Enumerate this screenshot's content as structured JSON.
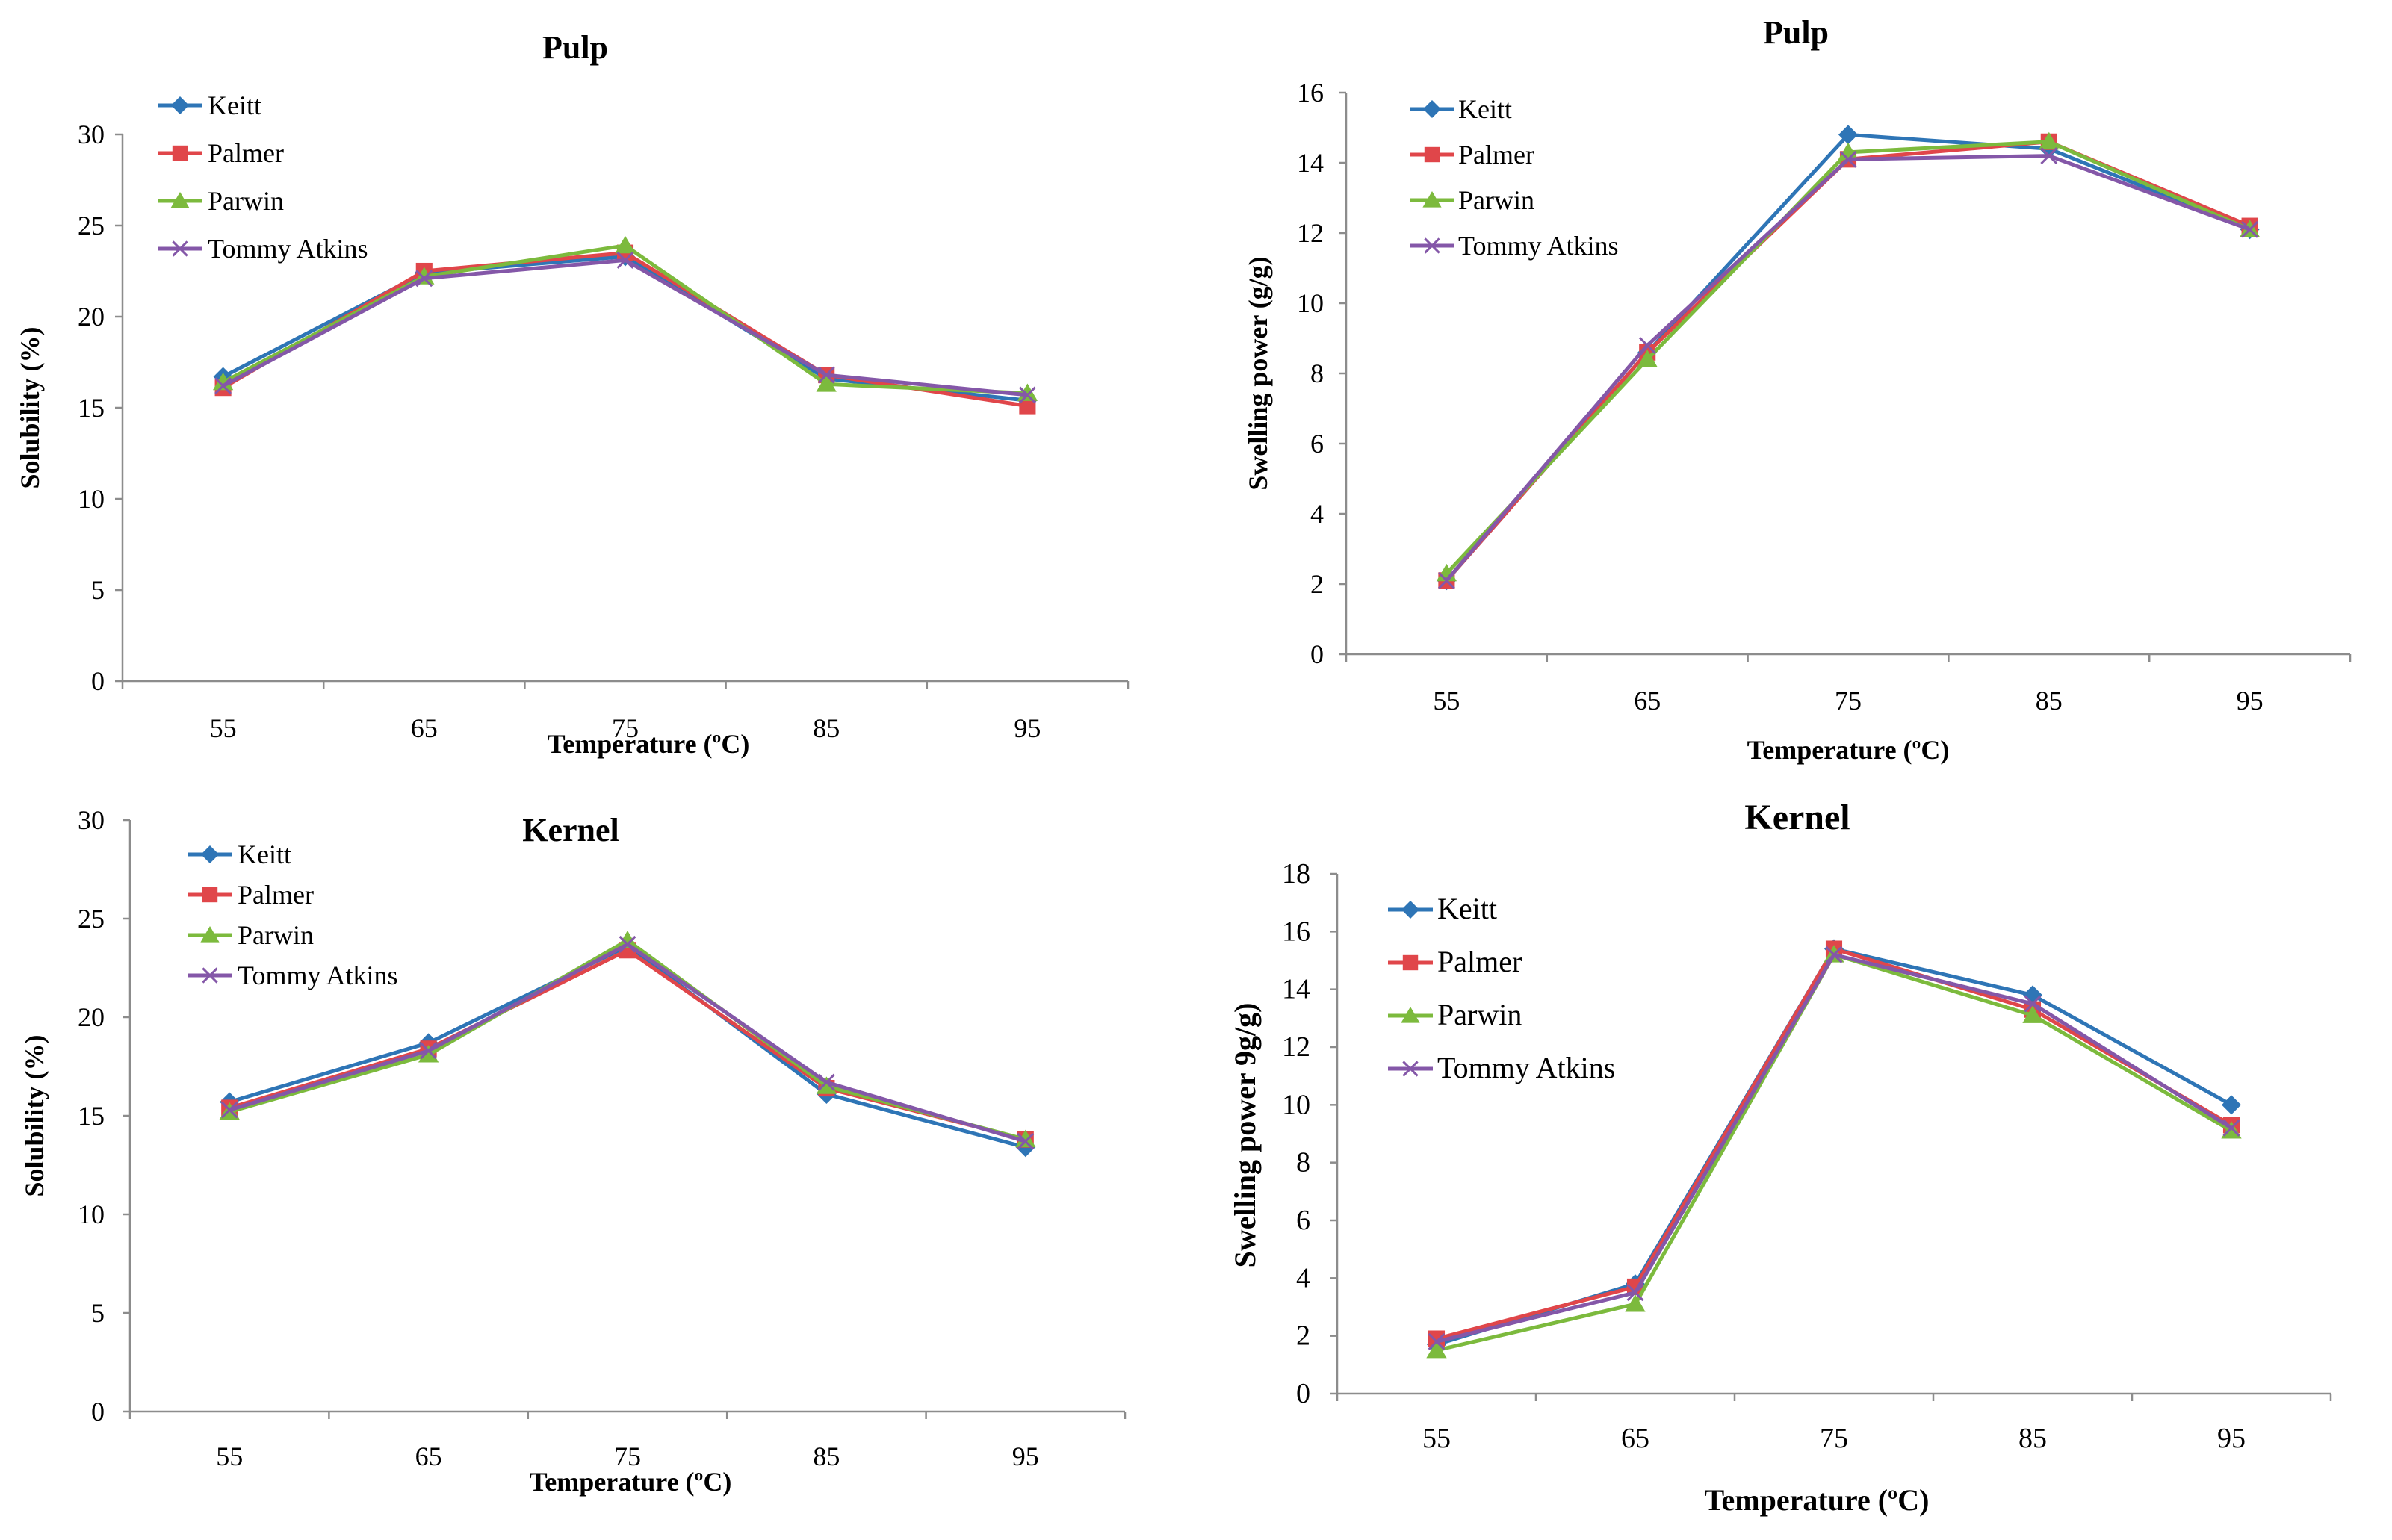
{
  "colors": {
    "Keitt": "#2e75b6",
    "Palmer": "#e0464a",
    "Parwin": "#7cba3d",
    "Tommy Atkins": "#8457a8"
  },
  "chart_data": [
    {
      "type": "line",
      "title": "Pulp",
      "xlabel": "Temperature (ºC)",
      "ylabel": "Solubility (%)",
      "categories": [
        "55",
        "65",
        "75",
        "85",
        "95"
      ],
      "ylim": [
        0,
        30
      ],
      "yticks": [
        "0",
        "5",
        "10",
        "15",
        "20",
        "25",
        "30"
      ],
      "grid": false,
      "legend": "top-left",
      "series": [
        {
          "name": "Keitt",
          "values": [
            16.7,
            22.4,
            23.3,
            16.6,
            15.4
          ]
        },
        {
          "name": "Palmer",
          "values": [
            16.1,
            22.5,
            23.5,
            16.8,
            15.1
          ]
        },
        {
          "name": "Parwin",
          "values": [
            16.4,
            22.2,
            23.9,
            16.3,
            15.8
          ]
        },
        {
          "name": "Tommy Atkins",
          "values": [
            16.2,
            22.1,
            23.1,
            16.8,
            15.7
          ]
        }
      ]
    },
    {
      "type": "line",
      "title": "Pulp",
      "xlabel": "Temperature (ºC)",
      "ylabel": "Swelling power (g/g)",
      "categories": [
        "55",
        "65",
        "75",
        "85",
        "95"
      ],
      "ylim": [
        0,
        16
      ],
      "yticks": [
        "0",
        "2",
        "4",
        "6",
        "8",
        "10",
        "12",
        "14",
        "16"
      ],
      "grid": false,
      "legend": "top-left",
      "series": [
        {
          "name": "Keitt",
          "values": [
            2.1,
            8.6,
            14.8,
            14.4,
            12.1
          ]
        },
        {
          "name": "Palmer",
          "values": [
            2.1,
            8.6,
            14.1,
            14.6,
            12.2
          ]
        },
        {
          "name": "Parwin",
          "values": [
            2.3,
            8.4,
            14.3,
            14.6,
            12.1
          ]
        },
        {
          "name": "Tommy Atkins",
          "values": [
            2.1,
            8.8,
            14.1,
            14.2,
            12.1
          ]
        }
      ]
    },
    {
      "type": "line",
      "title": "Kernel",
      "xlabel": "Temperature (ºC)",
      "ylabel": "Solubility (%)",
      "categories": [
        "55",
        "65",
        "75",
        "85",
        "95"
      ],
      "ylim": [
        0,
        30
      ],
      "yticks": [
        "0",
        "5",
        "10",
        "15",
        "20",
        "25",
        "30"
      ],
      "grid": false,
      "legend": "top-left",
      "series": [
        {
          "name": "Keitt",
          "values": [
            15.7,
            18.7,
            23.6,
            16.1,
            13.4
          ]
        },
        {
          "name": "Palmer",
          "values": [
            15.4,
            18.4,
            23.4,
            16.4,
            13.8
          ]
        },
        {
          "name": "Parwin",
          "values": [
            15.2,
            18.1,
            23.9,
            16.5,
            13.8
          ]
        },
        {
          "name": "Tommy Atkins",
          "values": [
            15.3,
            18.3,
            23.7,
            16.7,
            13.7
          ]
        }
      ]
    },
    {
      "type": "line",
      "title": "Kernel",
      "xlabel": "Temperature (ºC)",
      "ylabel": "Swelling power 9g/g)",
      "categories": [
        "55",
        "65",
        "75",
        "85",
        "95"
      ],
      "ylim": [
        0,
        18
      ],
      "yticks": [
        "0",
        "2",
        "4",
        "6",
        "8",
        "10",
        "12",
        "14",
        "16",
        "18"
      ],
      "grid": false,
      "legend": "top-left",
      "series": [
        {
          "name": "Keitt",
          "values": [
            1.7,
            3.8,
            15.4,
            13.8,
            10.0
          ]
        },
        {
          "name": "Palmer",
          "values": [
            1.9,
            3.7,
            15.4,
            13.3,
            9.3
          ]
        },
        {
          "name": "Parwin",
          "values": [
            1.5,
            3.1,
            15.2,
            13.1,
            9.1
          ]
        },
        {
          "name": "Tommy Atkins",
          "values": [
            1.8,
            3.5,
            15.2,
            13.5,
            9.2
          ]
        }
      ]
    }
  ]
}
